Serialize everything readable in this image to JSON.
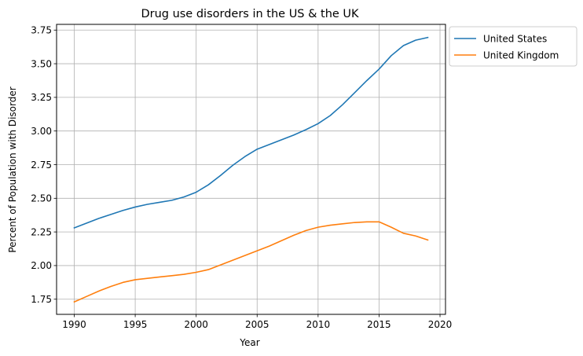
{
  "chart_data": {
    "type": "line",
    "title": "Drug use disorders in the US & the UK",
    "xlabel": "Year",
    "ylabel": "Percent of Population with Disorder",
    "xlim": [
      1988.55,
      2020.45
    ],
    "ylim": [
      1.6375,
      3.7925
    ],
    "xticks": [
      1990,
      1995,
      2000,
      2005,
      2010,
      2015,
      2020
    ],
    "xtick_labels": [
      "1990",
      "1995",
      "2000",
      "2005",
      "2010",
      "2015",
      "2020"
    ],
    "yticks": [
      1.75,
      2.0,
      2.25,
      2.5,
      2.75,
      3.0,
      3.25,
      3.5,
      3.75
    ],
    "ytick_labels": [
      "1.75",
      "2.00",
      "2.25",
      "2.50",
      "2.75",
      "3.00",
      "3.25",
      "3.50",
      "3.75"
    ],
    "grid": true,
    "legend_position": "outside-top-right",
    "x": [
      1990,
      1991,
      1992,
      1993,
      1994,
      1995,
      1996,
      1997,
      1998,
      1999,
      2000,
      2001,
      2002,
      2003,
      2004,
      2005,
      2006,
      2007,
      2008,
      2009,
      2010,
      2011,
      2012,
      2013,
      2014,
      2015,
      2016,
      2017,
      2018,
      2019
    ],
    "series": [
      {
        "name": "United States",
        "color": "#1f77b4",
        "values": [
          2.28,
          2.315,
          2.35,
          2.38,
          2.41,
          2.435,
          2.455,
          2.47,
          2.485,
          2.51,
          2.545,
          2.6,
          2.67,
          2.745,
          2.81,
          2.865,
          2.9,
          2.935,
          2.97,
          3.01,
          3.055,
          3.115,
          3.195,
          3.285,
          3.375,
          3.46,
          3.56,
          3.635,
          3.675,
          3.695
        ]
      },
      {
        "name": "United Kingdom",
        "color": "#ff7f0e",
        "values": [
          1.73,
          1.77,
          1.81,
          1.845,
          1.875,
          1.895,
          1.905,
          1.915,
          1.925,
          1.935,
          1.95,
          1.97,
          2.005,
          2.04,
          2.075,
          2.11,
          2.145,
          2.185,
          2.225,
          2.26,
          2.285,
          2.3,
          2.31,
          2.32,
          2.325,
          2.325,
          2.285,
          2.24,
          2.22,
          2.19
        ]
      }
    ]
  }
}
